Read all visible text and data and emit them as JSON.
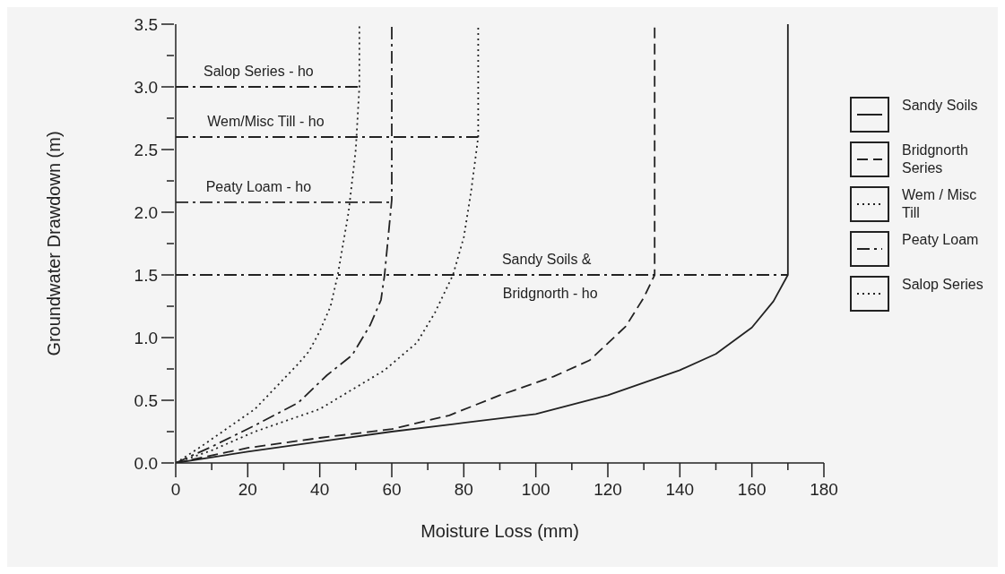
{
  "chart_data": {
    "type": "line",
    "xlabel": "Moisture Loss (mm)",
    "ylabel": "Groundwater Drawdown (m)",
    "xlim": [
      0,
      180
    ],
    "xticks": [
      0,
      {
        "value": 10,
        "label": null
      },
      20,
      {
        "value": 30,
        "label": null
      },
      40,
      {
        "value": 50,
        "label": null
      },
      60,
      {
        "value": 70,
        "label": null
      },
      80,
      {
        "value": 90,
        "label": null
      },
      100,
      {
        "value": 110,
        "label": null
      },
      120,
      {
        "value": 130,
        "label": null
      },
      140,
      {
        "value": 150,
        "label": null
      },
      160,
      {
        "value": 170,
        "label": null
      },
      180
    ],
    "ylim": [
      0,
      3.5
    ],
    "yticks": [
      {
        "value": 0,
        "label": "0.0"
      },
      {
        "value": 0.25,
        "label": null
      },
      {
        "value": 0.5,
        "label": "0.5"
      },
      {
        "value": 0.75,
        "label": null
      },
      {
        "value": 1,
        "label": "1.0"
      },
      {
        "value": 1.25,
        "label": null
      },
      {
        "value": 1.5,
        "label": "1.5"
      },
      {
        "value": 1.75,
        "label": null
      },
      {
        "value": 2,
        "label": "2.0"
      },
      {
        "value": 2.25,
        "label": null
      },
      {
        "value": 2.5,
        "label": "2.5"
      },
      {
        "value": 2.75,
        "label": null
      },
      {
        "value": 3,
        "label": "3.0"
      },
      {
        "value": 3.25,
        "label": null
      },
      {
        "value": 3.5,
        "label": "3.5"
      }
    ],
    "grid": false,
    "legend": "right",
    "marker": "none",
    "series": [
      {
        "name": "Sandy Soils",
        "color": "#222222",
        "line_style": "solid",
        "x": [
          0,
          20,
          40,
          60,
          80,
          100,
          120,
          140,
          150,
          160,
          166,
          170,
          170
        ],
        "values": [
          0,
          0.09,
          0.17,
          0.25,
          0.32,
          0.39,
          0.54,
          0.74,
          0.87,
          1.08,
          1.29,
          1.5,
          3.5
        ]
      },
      {
        "name": "Bridgnorth Series",
        "color": "#222222",
        "line_style": "dashed",
        "x": [
          0,
          20,
          40,
          60,
          76,
          90,
          105,
          115,
          125,
          130,
          133,
          133
        ],
        "values": [
          0,
          0.12,
          0.2,
          0.27,
          0.38,
          0.54,
          0.69,
          0.82,
          1.09,
          1.32,
          1.5,
          3.5
        ]
      },
      {
        "name": "Wem / Misc Till",
        "color": "#222222",
        "line_style": "dotted",
        "x": [
          0,
          10,
          22,
          40,
          58,
          67,
          72,
          77,
          80,
          82,
          84,
          84
        ],
        "values": [
          0,
          0.1,
          0.25,
          0.43,
          0.74,
          0.96,
          1.2,
          1.5,
          1.8,
          2.16,
          2.6,
          3.5
        ]
      },
      {
        "name": "Peaty Loam",
        "color": "#222222",
        "line_style": "dashdot",
        "x": [
          0,
          10,
          22,
          34,
          42,
          49,
          54,
          57,
          58,
          59,
          60,
          60
        ],
        "values": [
          0,
          0.13,
          0.3,
          0.48,
          0.7,
          0.86,
          1.1,
          1.3,
          1.5,
          1.8,
          2.1,
          3.5
        ]
      },
      {
        "name": "Salop Series",
        "color": "#222222",
        "line_style": "dotted",
        "x": [
          0,
          7,
          13,
          22,
          34,
          37,
          40,
          43,
          45,
          48,
          50,
          51,
          51
        ],
        "values": [
          0,
          0.13,
          0.25,
          0.43,
          0.79,
          0.89,
          1.05,
          1.25,
          1.5,
          2,
          2.5,
          3,
          3.5
        ]
      },
      {
        "color": "#222222",
        "line_style": "dashdot",
        "x": [
          0,
          51
        ],
        "values": [
          3,
          3
        ]
      },
      {
        "color": "#222222",
        "line_style": "dashdot",
        "x": [
          0,
          84
        ],
        "values": [
          2.6,
          2.6
        ]
      },
      {
        "color": "#222222",
        "line_style": "dashdot",
        "x": [
          0,
          60
        ],
        "values": [
          2.08,
          2.08
        ]
      },
      {
        "color": "#222222",
        "line_style": "dashdot",
        "x": [
          0,
          170
        ],
        "values": [
          1.5,
          1.5
        ]
      }
    ],
    "annotations": [
      {
        "text": "Salop Series - ho",
        "x": 23,
        "y": 3
      },
      {
        "text": "Wem/Misc Till - ho",
        "x": 25,
        "y": 2.6
      },
      {
        "text": "Peaty Loam - ho",
        "x": 23,
        "y": 2.08
      },
      {
        "text": "Sandy Soils &",
        "x": 103,
        "y": 1.5
      },
      {
        "text": "Bridgnorth - ho",
        "x": 104,
        "y": 1.5
      }
    ]
  }
}
